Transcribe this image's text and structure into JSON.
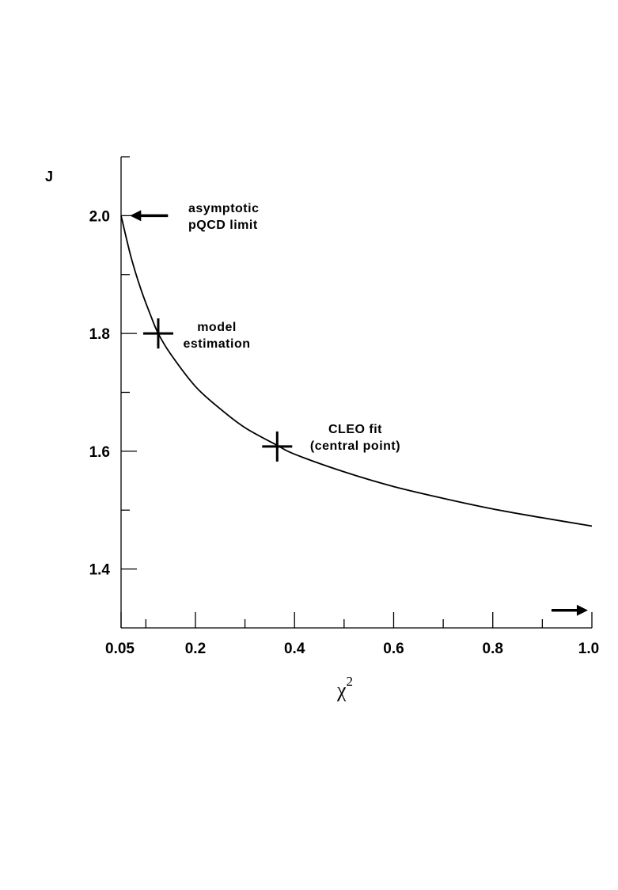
{
  "chart_data": {
    "type": "line",
    "title": "",
    "xlabel": "χ",
    "xlabel_superscript": "2",
    "ylabel": "J",
    "xlim": [
      0.05,
      1.0
    ],
    "ylim": [
      1.3,
      2.1
    ],
    "xticks": [
      {
        "value": 0.05,
        "label": "0.05"
      },
      {
        "value": 0.2,
        "label": "0.2"
      },
      {
        "value": 0.4,
        "label": "0.4"
      },
      {
        "value": 0.6,
        "label": "0.6"
      },
      {
        "value": 0.8,
        "label": "0.8"
      },
      {
        "value": 1.0,
        "label": "1.0"
      }
    ],
    "xminor": [
      0.1,
      0.3,
      0.5,
      0.7,
      0.9
    ],
    "yticks": [
      {
        "value": 1.4,
        "label": "1.4"
      },
      {
        "value": 1.6,
        "label": "1.6"
      },
      {
        "value": 1.8,
        "label": "1.8"
      },
      {
        "value": 2.0,
        "label": "2.0"
      }
    ],
    "yminor": [
      1.5,
      1.7,
      1.9,
      2.1
    ],
    "grid": false,
    "series": [
      {
        "x": [
          0.05,
          0.07,
          0.09,
          0.11,
          0.125,
          0.15,
          0.2,
          0.25,
          0.3,
          0.365,
          0.4,
          0.5,
          0.6,
          0.7,
          0.8,
          0.9,
          1.0
        ],
        "values": [
          2.0,
          1.93,
          1.875,
          1.83,
          1.8,
          1.765,
          1.71,
          1.672,
          1.64,
          1.61,
          1.595,
          1.565,
          1.54,
          1.52,
          1.502,
          1.487,
          1.473
        ]
      }
    ],
    "markers": [
      {
        "x": 0.125,
        "y": 1.8
      },
      {
        "x": 0.365,
        "y": 1.608
      }
    ],
    "annotations": [
      {
        "name": "asymptotic-limit",
        "lines": [
          "asymptotic",
          "pQCD limit"
        ],
        "x": 0.18,
        "y": 2.0
      },
      {
        "name": "model-estimation",
        "lines": [
          "model",
          "estimation"
        ],
        "x": 0.18,
        "y": 1.8
      },
      {
        "name": "cleo-fit",
        "lines": [
          "CLEO fit",
          "(central point)"
        ],
        "x": 0.46,
        "y": 1.61
      }
    ],
    "arrows": [
      {
        "name": "left-arrow",
        "direction": "left",
        "x": 0.1,
        "y": 2.0
      },
      {
        "name": "right-arrow",
        "direction": "right",
        "x": 0.96,
        "y": 1.33
      }
    ]
  }
}
